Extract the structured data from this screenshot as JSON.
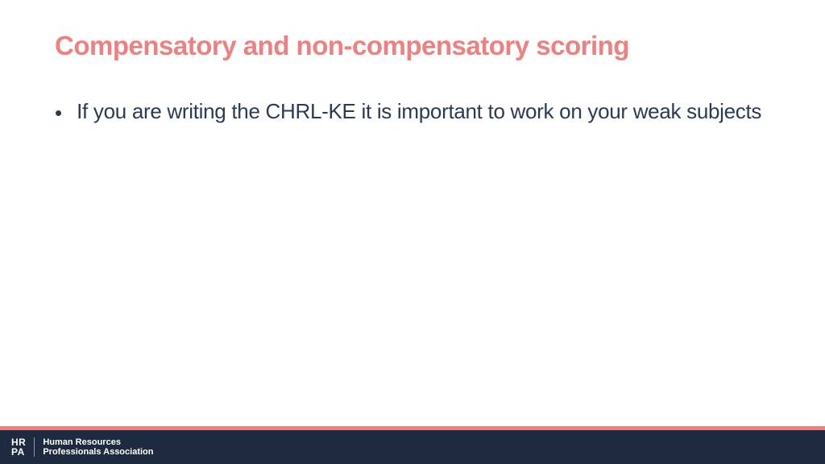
{
  "slide": {
    "title": "Compensatory and non-compensatory scoring",
    "title_color": "#f08080",
    "title_fontsize": 33,
    "title_fontweight": 700,
    "body_color": "#2b3a55",
    "body_fontsize": 26,
    "background_color": "#ffffff",
    "bullets": [
      {
        "text": "If you are writing the CHRL-KE it is important to work on your weak subjects"
      }
    ]
  },
  "footer": {
    "accent_color": "#f08080",
    "bar_color": "#1e2a3f",
    "logo_line1": "HR",
    "logo_line2": "PA",
    "org_line1": "Human Resources",
    "org_line2": "Professionals Association",
    "text_color": "#ffffff"
  }
}
